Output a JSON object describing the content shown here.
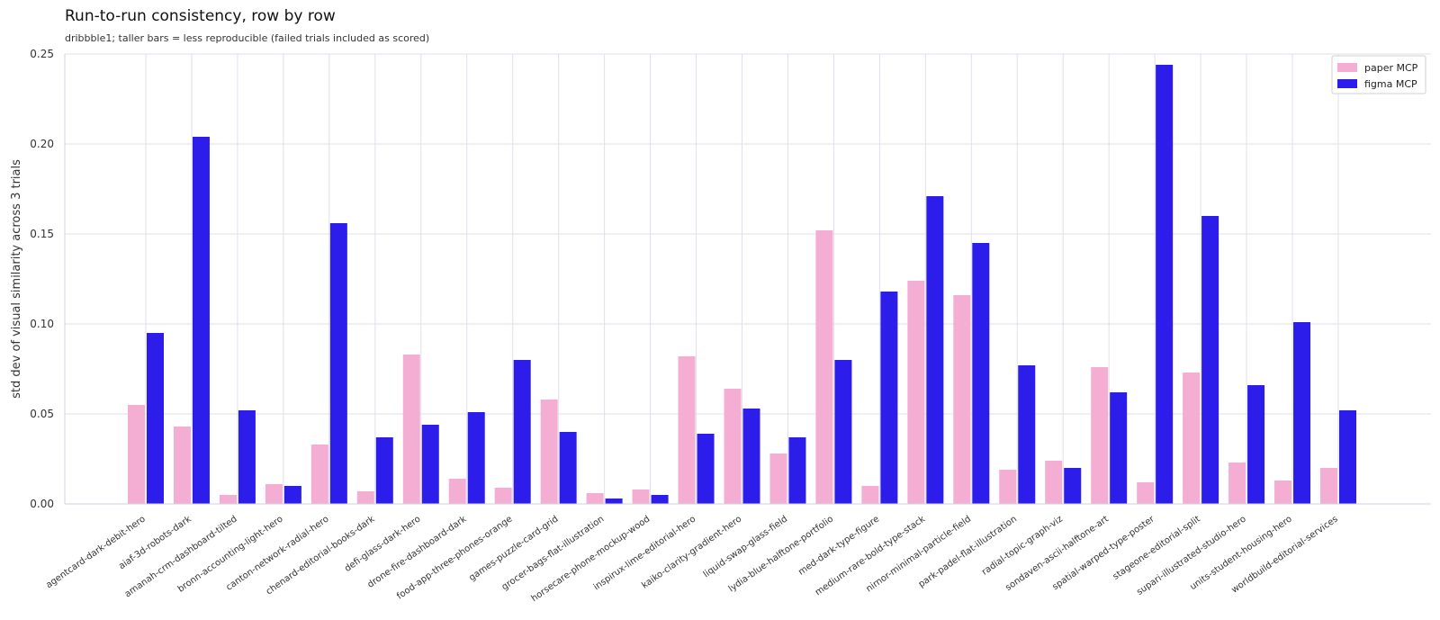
{
  "header": {
    "title": "Run-to-run consistency, row by row",
    "subtitle": "dribbble1; taller bars = less reproducible (failed trials included as scored)"
  },
  "chart_data": {
    "type": "bar",
    "title": "Run-to-run consistency, row by row",
    "subtitle": "dribbble1; taller bars = less reproducible (failed trials included as scored)",
    "xlabel": "",
    "ylabel": "std dev of visual similarity across 3 trials",
    "ylim": [
      0,
      0.25
    ],
    "yticks": [
      "0.00",
      "0.05",
      "0.10",
      "0.15",
      "0.20",
      "0.25"
    ],
    "grid": true,
    "legend_position": "top-right",
    "categories": [
      "agentcard-dark-debit-hero",
      "aiaf-3d-robots-dark",
      "amanah-crm-dashboard-tilted",
      "bronn-accounting-light-hero",
      "canton-network-radial-hero",
      "chenard-editorial-books-dark",
      "defi-glass-dark-hero",
      "drone-fire-dashboard-dark",
      "food-app-three-phones-orange",
      "games-puzzle-card-grid",
      "grocer-bags-flat-illustration",
      "horsecare-phone-mockup-wood",
      "inspirux-lime-editorial-hero",
      "kaiko-clarity-gradient-hero",
      "liquid-swap-glass-field",
      "lydia-blue-halftone-portfolio",
      "med-dark-type-figure",
      "medium-rare-bold-type-stack",
      "nirnor-minimal-particle-field",
      "park-padel-flat-illustration",
      "radial-topic-graph-viz",
      "sondaven-ascii-halftone-art",
      "spatial-warped-type-poster",
      "stageone-editorial-split",
      "supari-illustrated-studio-hero",
      "units-student-housing-hero",
      "worldbuild-editorial-services"
    ],
    "series": [
      {
        "name": "paper MCP",
        "color": "#f4aed3",
        "values": [
          0.055,
          0.043,
          0.005,
          0.011,
          0.033,
          0.007,
          0.083,
          0.014,
          0.009,
          0.058,
          0.006,
          0.008,
          0.082,
          0.064,
          0.028,
          0.152,
          0.01,
          0.124,
          0.116,
          0.019,
          0.024,
          0.076,
          0.012,
          0.073,
          0.023,
          0.013,
          0.02
        ]
      },
      {
        "name": "figma MCP",
        "color": "#2d1deb",
        "values": [
          0.095,
          0.204,
          0.052,
          0.01,
          0.156,
          0.037,
          0.044,
          0.051,
          0.08,
          0.04,
          0.003,
          0.005,
          0.039,
          0.053,
          0.037,
          0.08,
          0.118,
          0.171,
          0.145,
          0.077,
          0.02,
          0.062,
          0.244,
          0.16,
          0.066,
          0.101,
          0.052
        ]
      }
    ]
  }
}
